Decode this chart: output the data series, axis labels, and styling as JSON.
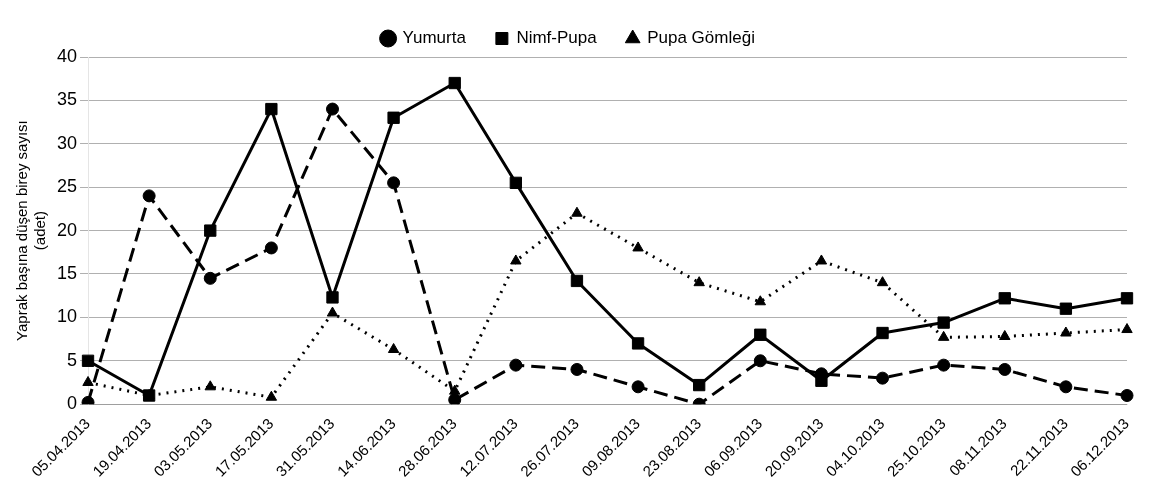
{
  "chart_data": {
    "type": "line",
    "ylabel": "Yaprak başına düşen birey sayısı\n(adet)",
    "categories": [
      "05.04.2013",
      "19.04.2013",
      "03.05.2013",
      "17.05.2013",
      "31.05.2013",
      "14.06.2013",
      "28.06.2013",
      "12.07.2013",
      "26.07.2013",
      "09.08.2013",
      "23.08.2013",
      "06.09.2013",
      "20.09.2013",
      "04.10.2013",
      "25.10.2013",
      "08.11.2013",
      "22.11.2013",
      "06.12.2013"
    ],
    "series": [
      {
        "name": "Yumurta",
        "color": "#000000",
        "line_style": "dashed",
        "marker": "circle",
        "values": [
          0.2,
          24,
          14.5,
          18,
          34,
          25.5,
          0.5,
          4.5,
          4,
          2,
          0,
          5,
          3.5,
          3,
          4.5,
          4,
          2,
          1
        ]
      },
      {
        "name": "Nimf-Pupa",
        "color": "#000000",
        "line_style": "solid",
        "marker": "square",
        "values": [
          5,
          1,
          20,
          34,
          12.3,
          33,
          37,
          25.5,
          14.2,
          7,
          2.2,
          8,
          2.7,
          8.2,
          9.4,
          12.2,
          11,
          12.2
        ]
      },
      {
        "name": "Pupa Gömleği",
        "color": "#000000",
        "line_style": "dotted",
        "marker": "triangle",
        "values": [
          2.5,
          1,
          2,
          0.8,
          10.5,
          6.3,
          1.5,
          16.5,
          22,
          18,
          14,
          11.8,
          16.5,
          14,
          7.7,
          7.8,
          8.2,
          8.6
        ]
      }
    ],
    "ylim": [
      0,
      40
    ],
    "yticks": [
      0,
      5,
      10,
      15,
      20,
      25,
      30,
      35,
      40
    ],
    "grid": "y",
    "legend": "top"
  }
}
